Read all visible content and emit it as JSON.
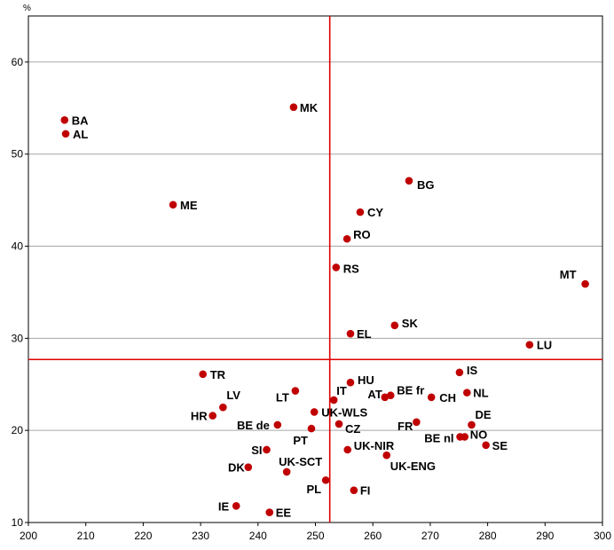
{
  "chart_data": {
    "type": "scatter",
    "title": "",
    "xlabel": "",
    "ylabel": "%",
    "xlim": [
      200,
      300
    ],
    "ylim": [
      10,
      65
    ],
    "x_ticks": [
      200,
      210,
      220,
      230,
      240,
      250,
      260,
      270,
      280,
      290,
      300
    ],
    "y_ticks": [
      10,
      20,
      30,
      40,
      50,
      60
    ],
    "grid": "horizontal",
    "reference_lines": {
      "x": 252.5,
      "y": 27.7
    },
    "colors": {
      "point": "#c00000",
      "reference": "#e00000",
      "grid": "#a6a6a6",
      "axis": "#000000"
    },
    "points": [
      {
        "label": "BA",
        "x": 206.3,
        "y": 53.7
      },
      {
        "label": "AL",
        "x": 206.5,
        "y": 52.2
      },
      {
        "label": "MK",
        "x": 246.2,
        "y": 55.1
      },
      {
        "label": "BG",
        "x": 266.3,
        "y": 47.1
      },
      {
        "label": "ME",
        "x": 225.2,
        "y": 44.5
      },
      {
        "label": "CY",
        "x": 257.8,
        "y": 43.7
      },
      {
        "label": "RO",
        "x": 255.5,
        "y": 40.8
      },
      {
        "label": "RS",
        "x": 253.6,
        "y": 37.7
      },
      {
        "label": "MT",
        "x": 297.0,
        "y": 35.9
      },
      {
        "label": "SK",
        "x": 263.8,
        "y": 31.4
      },
      {
        "label": "EL",
        "x": 256.1,
        "y": 30.5
      },
      {
        "label": "LU",
        "x": 287.3,
        "y": 29.3
      },
      {
        "label": "TR",
        "x": 230.4,
        "y": 26.1
      },
      {
        "label": "IS",
        "x": 275.1,
        "y": 26.3
      },
      {
        "label": "HU",
        "x": 256.1,
        "y": 25.2
      },
      {
        "label": "LT",
        "x": 246.5,
        "y": 24.3
      },
      {
        "label": "BE fr",
        "x": 263.1,
        "y": 23.8
      },
      {
        "label": "NL",
        "x": 276.4,
        "y": 24.1
      },
      {
        "label": "AT",
        "x": 262.1,
        "y": 23.6
      },
      {
        "label": "CH",
        "x": 270.2,
        "y": 23.6
      },
      {
        "label": "IT",
        "x": 253.2,
        "y": 23.3
      },
      {
        "label": "LV",
        "x": 233.9,
        "y": 22.5
      },
      {
        "label": "UK-WLS",
        "x": 249.8,
        "y": 22.0
      },
      {
        "label": "HR",
        "x": 232.1,
        "y": 21.6
      },
      {
        "label": "FR",
        "x": 267.6,
        "y": 20.9
      },
      {
        "label": "DE",
        "x": 277.2,
        "y": 20.6
      },
      {
        "label": "BE de",
        "x": 243.4,
        "y": 20.6
      },
      {
        "label": "CZ",
        "x": 254.1,
        "y": 20.7
      },
      {
        "label": "PT",
        "x": 249.3,
        "y": 20.2
      },
      {
        "label": "BE nl",
        "x": 275.2,
        "y": 19.3
      },
      {
        "label": "NO",
        "x": 276.0,
        "y": 19.3
      },
      {
        "label": "SE",
        "x": 279.7,
        "y": 18.4
      },
      {
        "label": "UK-NIR",
        "x": 255.6,
        "y": 17.9
      },
      {
        "label": "SI",
        "x": 241.5,
        "y": 17.9
      },
      {
        "label": "UK-ENG",
        "x": 262.4,
        "y": 17.3
      },
      {
        "label": "DK",
        "x": 238.3,
        "y": 16.0
      },
      {
        "label": "UK-SCT",
        "x": 245.0,
        "y": 15.5
      },
      {
        "label": "PL",
        "x": 251.8,
        "y": 14.6
      },
      {
        "label": "FI",
        "x": 256.7,
        "y": 13.5
      },
      {
        "label": "IE",
        "x": 236.2,
        "y": 11.8
      },
      {
        "label": "EE",
        "x": 242.0,
        "y": 11.1
      }
    ]
  }
}
